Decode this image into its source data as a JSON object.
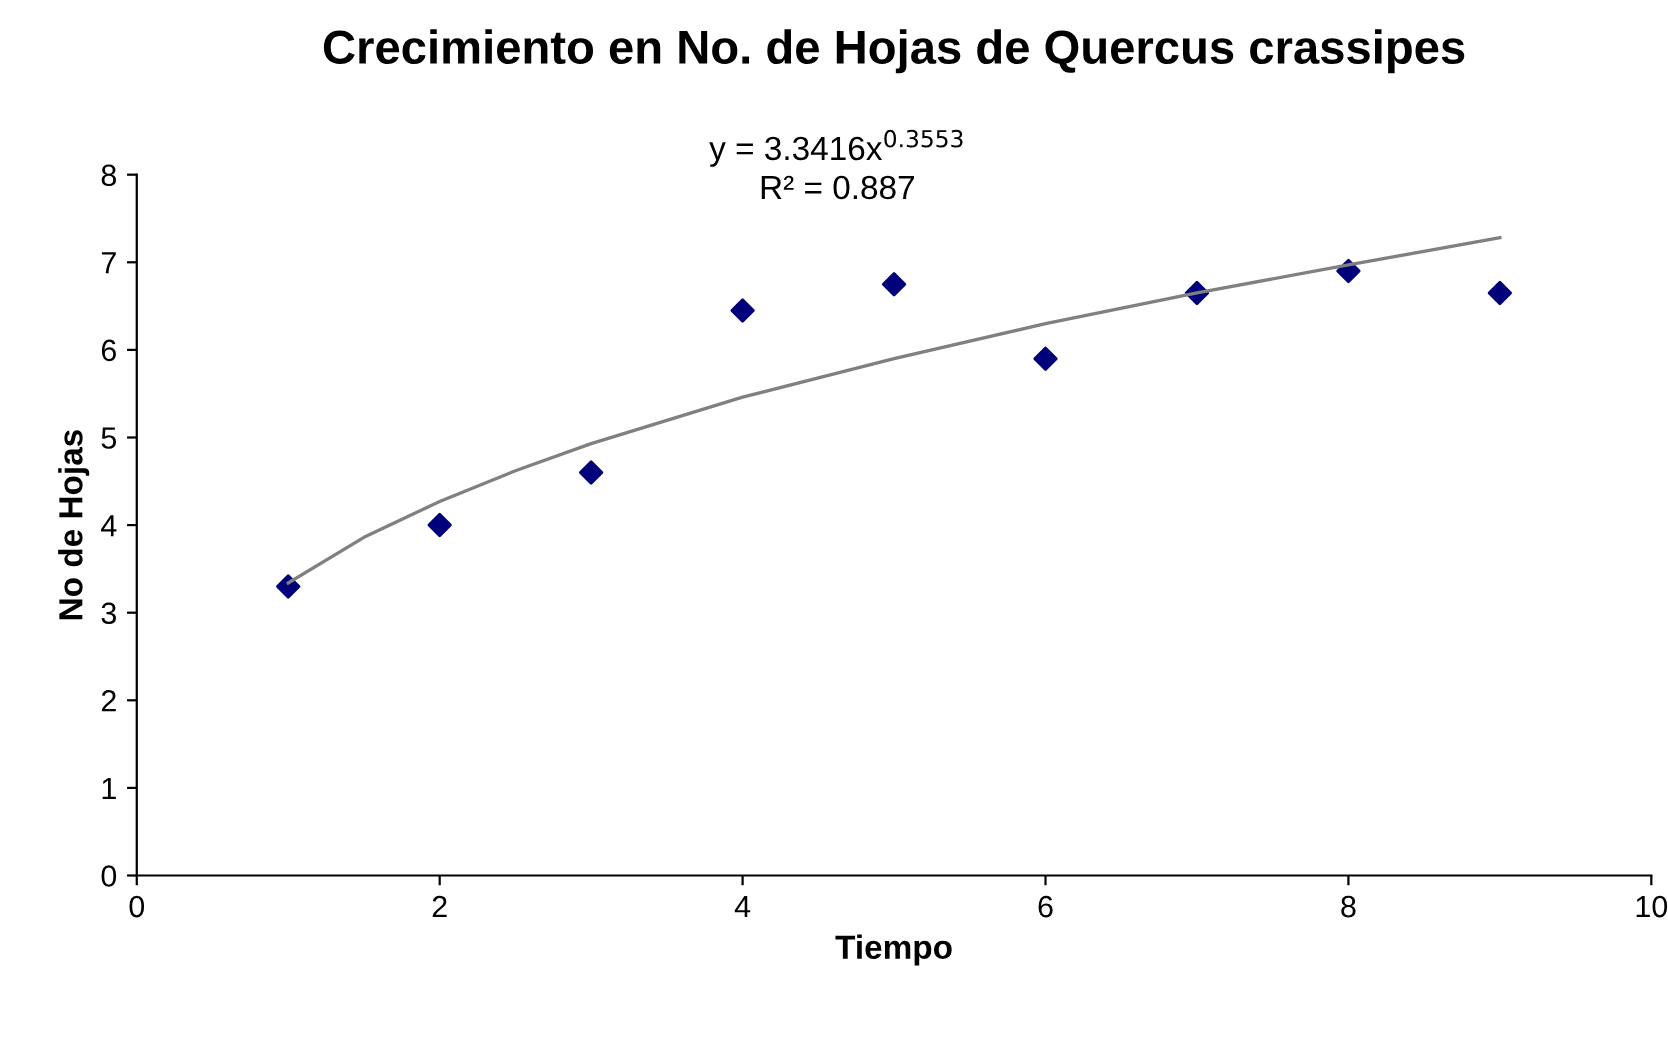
{
  "chart_data": {
    "type": "scatter",
    "title": "Crecimiento en No. de Hojas de Quercus crassipes",
    "xlabel": "Tiempo",
    "ylabel": "No de Hojas",
    "annotations": [
      "y = 3.3416x$^{0.3553}$",
      "R² = 0.887"
    ],
    "xlim": [
      0,
      10
    ],
    "xticks": [
      0,
      2,
      4,
      6,
      8,
      10
    ],
    "ylim": [
      0,
      8
    ],
    "yticks": [
      0,
      1,
      2,
      3,
      4,
      5,
      6,
      7,
      8
    ],
    "grid": false,
    "legend": false,
    "series": [
      {
        "color": "#00007a",
        "marker": "diamond",
        "x": [
          1,
          2,
          3,
          4,
          5,
          6,
          7,
          8,
          9
        ],
        "values": [
          3.3,
          4.0,
          4.6,
          6.45,
          6.75,
          5.9,
          6.65,
          6.9,
          6.65
        ]
      },
      {
        "type": "line",
        "color": "#808080",
        "marker": "none",
        "line_style": "solid",
        "x": [
          1,
          1.5,
          2,
          2.5,
          3,
          4,
          5,
          6,
          7,
          8,
          9
        ],
        "values": [
          3.34,
          3.86,
          4.27,
          4.62,
          4.93,
          5.46,
          5.9,
          6.3,
          6.65,
          6.97,
          7.28
        ]
      }
    ]
  }
}
